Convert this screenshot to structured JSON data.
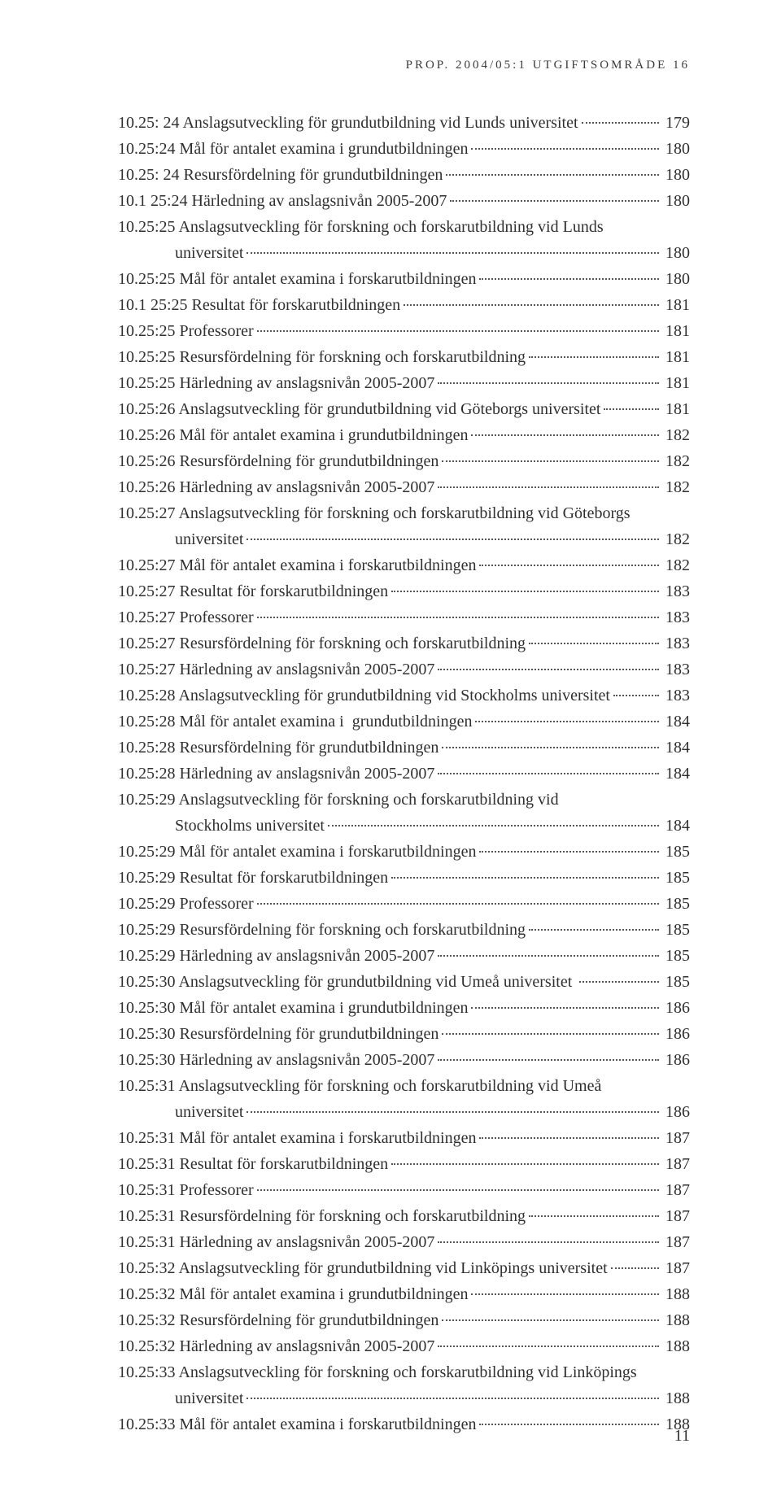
{
  "running_head": "PROP. 2004/05:1 UTGIFTSOMRÅDE 16",
  "page_number": "11",
  "toc": [
    {
      "label": "10.25: 24 Anslagsutveckling för grundutbildning vid Lunds universitet",
      "page": "179"
    },
    {
      "label": "10.25:24 Mål för antalet examina i grundutbildningen",
      "page": "180"
    },
    {
      "label": "10.25: 24 Resursfördelning för grundutbildningen",
      "page": "180"
    },
    {
      "label": "10.1 25:24 Härledning av anslagsnivån 2005-2007",
      "page": "180"
    },
    {
      "label": "10.25:25 Anslagsutveckling för forskning och forskarutbildning vid Lunds",
      "cont": "universitet",
      "page": "180"
    },
    {
      "label": "10.25:25 Mål för antalet examina i forskarutbildningen",
      "page": "180"
    },
    {
      "label": "10.1 25:25 Resultat för forskarutbildningen",
      "page": "181"
    },
    {
      "label": "10.25:25 Professorer",
      "page": "181"
    },
    {
      "label": "10.25:25 Resursfördelning för forskning och forskarutbildning",
      "page": "181"
    },
    {
      "label": "10.25:25 Härledning av anslagsnivån 2005-2007",
      "page": "181"
    },
    {
      "label": "10.25:26 Anslagsutveckling för grundutbildning vid Göteborgs universitet",
      "page": "181"
    },
    {
      "label": "10.25:26 Mål för antalet examina i grundutbildningen",
      "page": "182"
    },
    {
      "label": "10.25:26 Resursfördelning för grundutbildningen",
      "page": "182"
    },
    {
      "label": "10.25:26 Härledning av anslagsnivån 2005-2007",
      "page": "182"
    },
    {
      "label": "10.25:27 Anslagsutveckling för forskning och forskarutbildning vid Göteborgs",
      "cont": "universitet",
      "page": "182"
    },
    {
      "label": "10.25:27 Mål för antalet examina i forskarutbildningen",
      "page": "182"
    },
    {
      "label": "10.25:27 Resultat för forskarutbildningen",
      "page": "183"
    },
    {
      "label": "10.25:27 Professorer",
      "page": "183"
    },
    {
      "label": "10.25:27 Resursfördelning för forskning och forskarutbildning",
      "page": "183"
    },
    {
      "label": "10.25:27 Härledning av anslagsnivån 2005-2007",
      "page": "183"
    },
    {
      "label": "10.25:28 Anslagsutveckling för grundutbildning vid Stockholms universitet",
      "page": "183"
    },
    {
      "label": "10.25:28 Mål för antalet examina i  grundutbildningen",
      "page": "184"
    },
    {
      "label": "10.25:28 Resursfördelning för grundutbildningen",
      "page": "184"
    },
    {
      "label": "10.25:28 Härledning av anslagsnivån 2005-2007",
      "page": "184"
    },
    {
      "label": "10.25:29 Anslagsutveckling för forskning och forskarutbildning vid",
      "cont": "Stockholms universitet",
      "page": "184"
    },
    {
      "label": "10.25:29 Mål för antalet examina i forskarutbildningen",
      "page": "185"
    },
    {
      "label": "10.25:29 Resultat för forskarutbildningen",
      "page": "185"
    },
    {
      "label": "10.25:29 Professorer",
      "page": "185"
    },
    {
      "label": "10.25:29 Resursfördelning för forskning och forskarutbildning",
      "page": "185"
    },
    {
      "label": "10.25:29 Härledning av anslagsnivån 2005-2007",
      "page": "185"
    },
    {
      "label": "10.25:30 Anslagsutveckling för grundutbildning vid Umeå universitet ",
      "page": "185"
    },
    {
      "label": "10.25:30 Mål för antalet examina i grundutbildningen",
      "page": "186"
    },
    {
      "label": "10.25:30 Resursfördelning för grundutbildningen",
      "page": "186"
    },
    {
      "label": "10.25:30 Härledning av anslagsnivån 2005-2007",
      "page": "186"
    },
    {
      "label": "10.25:31 Anslagsutveckling för forskning och forskarutbildning vid Umeå",
      "cont": "universitet",
      "page": "186"
    },
    {
      "label": "10.25:31 Mål för antalet examina i forskarutbildningen",
      "page": "187"
    },
    {
      "label": "10.25:31 Resultat för forskarutbildningen",
      "page": "187"
    },
    {
      "label": "10.25:31 Professorer",
      "page": "187"
    },
    {
      "label": "10.25:31 Resursfördelning för forskning och forskarutbildning",
      "page": "187"
    },
    {
      "label": "10.25:31 Härledning av anslagsnivån 2005-2007",
      "page": "187"
    },
    {
      "label": "10.25:32 Anslagsutveckling för grundutbildning vid Linköpings universitet",
      "page": "187"
    },
    {
      "label": "10.25:32 Mål för antalet examina i grundutbildningen",
      "page": "188"
    },
    {
      "label": "10.25:32 Resursfördelning för grundutbildningen",
      "page": "188"
    },
    {
      "label": "10.25:32 Härledning av anslagsnivån 2005-2007",
      "page": "188"
    },
    {
      "label": "10.25:33 Anslagsutveckling för forskning och forskarutbildning vid Linköpings",
      "cont": "universitet",
      "page": "188"
    },
    {
      "label": "10.25:33 Mål för antalet examina i forskarutbildningen",
      "page": "188"
    }
  ]
}
